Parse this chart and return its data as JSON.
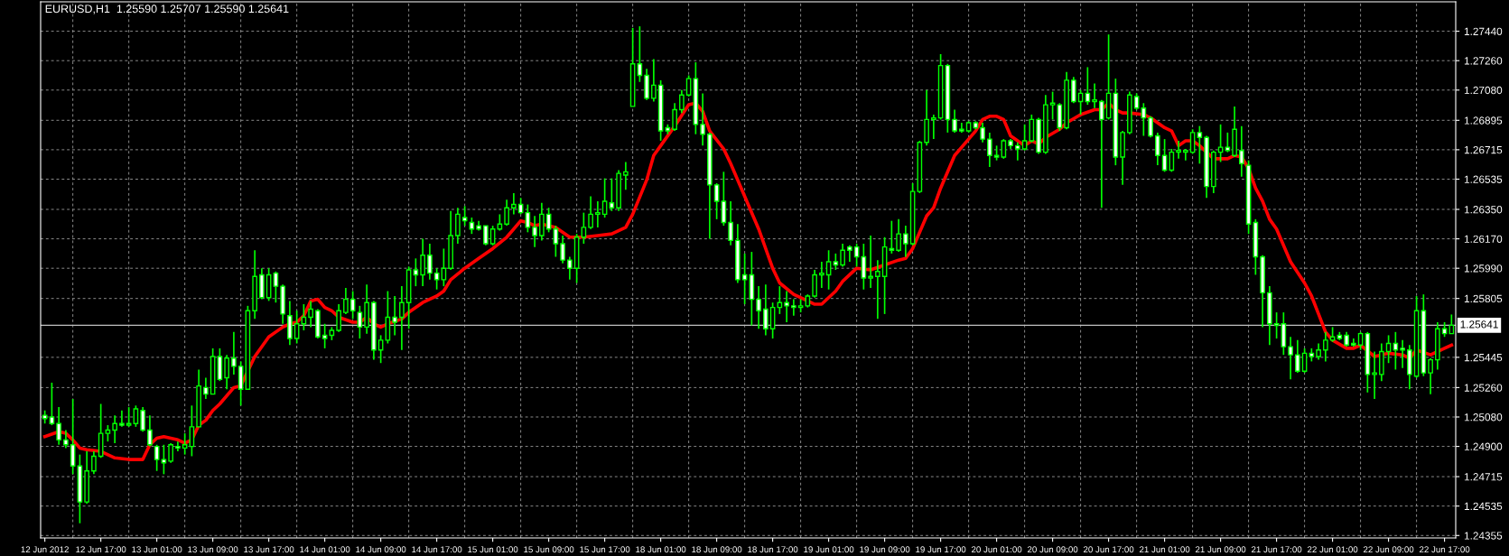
{
  "chart_data": {
    "type": "candlestick",
    "title": "EURUSD,H1  1.25590 1.25707 1.25590 1.25641",
    "categories": [
      "12 Jun 2012",
      null,
      null,
      null,
      null,
      null,
      null,
      null,
      "12 Jun 17:00",
      null,
      null,
      null,
      null,
      null,
      null,
      null,
      "13 Jun 01:00",
      null,
      null,
      null,
      null,
      null,
      null,
      null,
      "13 Jun 09:00",
      null,
      null,
      null,
      null,
      null,
      null,
      null,
      "13 Jun 17:00",
      null,
      null,
      null,
      null,
      null,
      null,
      null,
      "14 Jun 01:00",
      null,
      null,
      null,
      null,
      null,
      null,
      null,
      "14 Jun 09:00",
      null,
      null,
      null,
      null,
      null,
      null,
      null,
      "14 Jun 17:00",
      null,
      null,
      null,
      null,
      null,
      null,
      null,
      "15 Jun 01:00",
      null,
      null,
      null,
      null,
      null,
      null,
      null,
      "15 Jun 09:00",
      null,
      null,
      null,
      null,
      null,
      null,
      null,
      "15 Jun 17:00",
      null,
      null,
      null,
      null,
      null,
      null,
      null,
      "18 Jun 01:00",
      null,
      null,
      null,
      null,
      null,
      null,
      null,
      "18 Jun 09:00",
      null,
      null,
      null,
      null,
      null,
      null,
      null,
      "18 Jun 17:00",
      null,
      null,
      null,
      null,
      null,
      null,
      null,
      "19 Jun 01:00",
      null,
      null,
      null,
      null,
      null,
      null,
      null,
      "19 Jun 09:00",
      null,
      null,
      null,
      null,
      null,
      null,
      null,
      "19 Jun 17:00",
      null,
      null,
      null,
      null,
      null,
      null,
      null,
      "20 Jun 01:00",
      null,
      null,
      null,
      null,
      null,
      null,
      null,
      "20 Jun 09:00",
      null,
      null,
      null,
      null,
      null,
      null,
      null,
      "20 Jun 17:00",
      null,
      null,
      null,
      null,
      null,
      null,
      null,
      "21 Jun 01:00",
      null,
      null,
      null,
      null,
      null,
      null,
      null,
      "21 Jun 09:00",
      null,
      null,
      null,
      null,
      null,
      null,
      null,
      "21 Jun 17:00",
      null,
      null,
      null,
      null,
      null,
      null,
      null,
      "22 Jun 01:00",
      null,
      null,
      null,
      null,
      null,
      null,
      null,
      "22 Jun 09:00",
      null,
      null,
      null,
      null,
      null,
      null,
      null,
      "22 Jun 17:00",
      null
    ],
    "color": "#00ff00",
    "ohlc": [
      [
        1.2509,
        1.2512,
        1.2504,
        1.2507
      ],
      [
        1.2508,
        1.2529,
        1.2503,
        1.2504
      ],
      [
        1.2504,
        1.2514,
        1.2491,
        1.2494
      ],
      [
        1.2494,
        1.25,
        1.2489,
        1.2491
      ],
      [
        1.2491,
        1.2519,
        1.2473,
        1.2478
      ],
      [
        1.2478,
        1.2485,
        1.2443,
        1.2456
      ],
      [
        1.2456,
        1.2487,
        1.2455,
        1.2475
      ],
      [
        1.2475,
        1.2487,
        1.2473,
        1.2484
      ],
      [
        1.2484,
        1.2516,
        1.2483,
        1.2498
      ],
      [
        1.2498,
        1.2503,
        1.2493,
        1.25
      ],
      [
        1.25,
        1.2509,
        1.2492,
        1.2504
      ],
      [
        1.2504,
        1.2512,
        1.2502,
        1.2503
      ],
      [
        1.2503,
        1.2514,
        1.2502,
        1.2504
      ],
      [
        1.2504,
        1.2515,
        1.2502,
        1.2513
      ],
      [
        1.2512,
        1.2514,
        1.2499,
        1.25
      ],
      [
        1.25,
        1.2509,
        1.249,
        1.2491
      ],
      [
        1.249,
        1.2491,
        1.2475,
        1.2482
      ],
      [
        1.2482,
        1.2491,
        1.2473,
        1.248
      ],
      [
        1.2481,
        1.2492,
        1.248,
        1.2491
      ],
      [
        1.249,
        1.2493,
        1.2487,
        1.2489
      ],
      [
        1.2489,
        1.2498,
        1.2485,
        1.2491
      ],
      [
        1.249,
        1.2515,
        1.2484,
        1.2502
      ],
      [
        1.2502,
        1.2537,
        1.2502,
        1.2527
      ],
      [
        1.2526,
        1.2532,
        1.2519,
        1.2522
      ],
      [
        1.2522,
        1.255,
        1.2522,
        1.2545
      ],
      [
        1.2545,
        1.255,
        1.253,
        1.2531
      ],
      [
        1.2532,
        1.2546,
        1.2525,
        1.2544
      ],
      [
        1.2544,
        1.256,
        1.2534,
        1.2539
      ],
      [
        1.2539,
        1.2542,
        1.2515,
        1.2525
      ],
      [
        1.2525,
        1.2576,
        1.2525,
        1.2573
      ],
      [
        1.2573,
        1.261,
        1.2568,
        1.2594
      ],
      [
        1.2595,
        1.2599,
        1.258,
        1.2581
      ],
      [
        1.2581,
        1.2599,
        1.2579,
        1.2595
      ],
      [
        1.2596,
        1.2597,
        1.2578,
        1.2588
      ],
      [
        1.2588,
        1.2589,
        1.2565,
        1.2571
      ],
      [
        1.257,
        1.2579,
        1.2552,
        1.2556
      ],
      [
        1.2556,
        1.2573,
        1.2553,
        1.2565
      ],
      [
        1.2565,
        1.2577,
        1.2561,
        1.2569
      ],
      [
        1.2569,
        1.2579,
        1.2563,
        1.2574
      ],
      [
        1.2573,
        1.2574,
        1.2556,
        1.2557
      ],
      [
        1.2558,
        1.2565,
        1.255,
        1.2556
      ],
      [
        1.2558,
        1.2563,
        1.2555,
        1.2561
      ],
      [
        1.2561,
        1.2577,
        1.256,
        1.2573
      ],
      [
        1.2572,
        1.2587,
        1.2571,
        1.258
      ],
      [
        1.258,
        1.2585,
        1.2568,
        1.2573
      ],
      [
        1.2572,
        1.2576,
        1.2556,
        1.2563
      ],
      [
        1.2563,
        1.2589,
        1.2559,
        1.2578
      ],
      [
        1.2578,
        1.2579,
        1.2543,
        1.2549
      ],
      [
        1.2549,
        1.2558,
        1.2541,
        1.2555
      ],
      [
        1.2555,
        1.2585,
        1.2553,
        1.2569
      ],
      [
        1.2569,
        1.2582,
        1.2558,
        1.2566
      ],
      [
        1.2569,
        1.2588,
        1.2549,
        1.2578
      ],
      [
        1.2578,
        1.26,
        1.2562,
        1.2598
      ],
      [
        1.2598,
        1.2605,
        1.2588,
        1.2595
      ],
      [
        1.2595,
        1.2617,
        1.2588,
        1.2607
      ],
      [
        1.2607,
        1.2614,
        1.2592,
        1.2596
      ],
      [
        1.2596,
        1.2599,
        1.2586,
        1.2592
      ],
      [
        1.2592,
        1.2611,
        1.2588,
        1.2599
      ],
      [
        1.2599,
        1.2634,
        1.2598,
        1.2619
      ],
      [
        1.2619,
        1.2636,
        1.2614,
        1.2632
      ],
      [
        1.263,
        1.2637,
        1.2625,
        1.2628
      ],
      [
        1.2627,
        1.263,
        1.262,
        1.2623
      ],
      [
        1.2625,
        1.2628,
        1.2622,
        1.2623
      ],
      [
        1.2625,
        1.2625,
        1.2613,
        1.2614
      ],
      [
        1.2614,
        1.2625,
        1.2613,
        1.2623
      ],
      [
        1.2623,
        1.2632,
        1.2622,
        1.2626
      ],
      [
        1.2626,
        1.2641,
        1.2625,
        1.2636
      ],
      [
        1.2636,
        1.2645,
        1.2632,
        1.2638
      ],
      [
        1.2638,
        1.2642,
        1.2632,
        1.2633
      ],
      [
        1.2633,
        1.2638,
        1.2621,
        1.2624
      ],
      [
        1.2624,
        1.2631,
        1.2612,
        1.2619
      ],
      [
        1.2619,
        1.2639,
        1.2616,
        1.2632
      ],
      [
        1.2632,
        1.2636,
        1.2621,
        1.2623
      ],
      [
        1.2623,
        1.2625,
        1.2606,
        1.2614
      ],
      [
        1.2614,
        1.2619,
        1.2602,
        1.2604
      ],
      [
        1.2604,
        1.2606,
        1.2592,
        1.2599
      ],
      [
        1.2599,
        1.262,
        1.259,
        1.2618
      ],
      [
        1.2618,
        1.2633,
        1.2614,
        1.2624
      ],
      [
        1.2624,
        1.2643,
        1.2623,
        1.2632
      ],
      [
        1.2632,
        1.264,
        1.2624,
        1.2633
      ],
      [
        1.2632,
        1.2654,
        1.263,
        1.264
      ],
      [
        1.2639,
        1.2654,
        1.2634,
        1.2636
      ],
      [
        1.2636,
        1.2659,
        1.2634,
        1.2657
      ],
      [
        1.2656,
        1.2664,
        1.2647,
        1.2658
      ],
      [
        1.2698,
        1.2746,
        1.2698,
        1.2724
      ],
      [
        1.2724,
        1.2747,
        1.2713,
        1.2717
      ],
      [
        1.2717,
        1.2721,
        1.2702,
        1.2703
      ],
      [
        1.2703,
        1.2727,
        1.2701,
        1.2711
      ],
      [
        1.2711,
        1.2714,
        1.2677,
        1.2683
      ],
      [
        1.2685,
        1.2687,
        1.2681,
        1.2683
      ],
      [
        1.2684,
        1.27,
        1.2683,
        1.2696
      ],
      [
        1.2696,
        1.2708,
        1.2694,
        1.2705
      ],
      [
        1.2705,
        1.2717,
        1.2704,
        1.2715
      ],
      [
        1.2715,
        1.2725,
        1.2681,
        1.2687
      ],
      [
        1.2687,
        1.2706,
        1.2674,
        1.2681
      ],
      [
        1.2681,
        1.2682,
        1.2617,
        1.265
      ],
      [
        1.265,
        1.2651,
        1.2629,
        1.264
      ],
      [
        1.264,
        1.2658,
        1.2625,
        1.2627
      ],
      [
        1.2627,
        1.264,
        1.2613,
        1.2616
      ],
      [
        1.2616,
        1.2626,
        1.259,
        1.2592
      ],
      [
        1.2595,
        1.2608,
        1.2577,
        1.2592
      ],
      [
        1.2595,
        1.2609,
        1.2564,
        1.258
      ],
      [
        1.258,
        1.2588,
        1.2562,
        1.2573
      ],
      [
        1.2574,
        1.2589,
        1.2558,
        1.2562
      ],
      [
        1.2562,
        1.2578,
        1.2556,
        1.2575
      ],
      [
        1.2575,
        1.2588,
        1.2571,
        1.2578
      ],
      [
        1.2578,
        1.2585,
        1.2566,
        1.2576
      ],
      [
        1.2576,
        1.258,
        1.257,
        1.2575
      ],
      [
        1.2575,
        1.258,
        1.2572,
        1.2576
      ],
      [
        1.2576,
        1.2583,
        1.2575,
        1.2582
      ],
      [
        1.2582,
        1.2598,
        1.2581,
        1.2595
      ],
      [
        1.2595,
        1.2603,
        1.2587,
        1.2596
      ],
      [
        1.2595,
        1.261,
        1.2586,
        1.2603
      ],
      [
        1.2603,
        1.2608,
        1.2598,
        1.2601
      ],
      [
        1.2601,
        1.2614,
        1.26,
        1.261
      ],
      [
        1.2612,
        1.2613,
        1.2603,
        1.261
      ],
      [
        1.2612,
        1.2614,
        1.26,
        1.2606
      ],
      [
        1.2606,
        1.2614,
        1.2586,
        1.2593
      ],
      [
        1.2593,
        1.2619,
        1.2587,
        1.2594
      ],
      [
        1.2594,
        1.2604,
        1.2568,
        1.2597
      ],
      [
        1.2594,
        1.2618,
        1.2571,
        1.2612
      ],
      [
        1.2611,
        1.2628,
        1.2608,
        1.261
      ],
      [
        1.261,
        1.2629,
        1.2609,
        1.262
      ],
      [
        1.262,
        1.2625,
        1.2606,
        1.2614
      ],
      [
        1.2614,
        1.2651,
        1.2613,
        1.2646
      ],
      [
        1.2646,
        1.2677,
        1.2645,
        1.2676
      ],
      [
        1.2676,
        1.2708,
        1.2674,
        1.269
      ],
      [
        1.269,
        1.2693,
        1.2678,
        1.2691
      ],
      [
        1.2691,
        1.273,
        1.269,
        1.2723
      ],
      [
        1.2723,
        1.2724,
        1.2682,
        1.269
      ],
      [
        1.269,
        1.2696,
        1.2682,
        1.2683
      ],
      [
        1.2684,
        1.2688,
        1.2682,
        1.2683
      ],
      [
        1.2683,
        1.2689,
        1.2682,
        1.2688
      ],
      [
        1.2688,
        1.2689,
        1.2684,
        1.2685
      ],
      [
        1.2685,
        1.2688,
        1.2676,
        1.2678
      ],
      [
        1.2678,
        1.2682,
        1.2661,
        1.2668
      ],
      [
        1.2668,
        1.2674,
        1.2665,
        1.2667
      ],
      [
        1.2667,
        1.2678,
        1.2666,
        1.2677
      ],
      [
        1.2677,
        1.2678,
        1.2672,
        1.2674
      ],
      [
        1.2674,
        1.2676,
        1.2665,
        1.2672
      ],
      [
        1.2672,
        1.2687,
        1.2671,
        1.2677
      ],
      [
        1.2677,
        1.2693,
        1.2676,
        1.269
      ],
      [
        1.269,
        1.2691,
        1.2669,
        1.267
      ],
      [
        1.267,
        1.2705,
        1.2669,
        1.2699
      ],
      [
        1.2699,
        1.2707,
        1.269,
        1.27
      ],
      [
        1.2699,
        1.27,
        1.2683,
        1.2685
      ],
      [
        1.2685,
        1.2719,
        1.2684,
        1.2714
      ],
      [
        1.2714,
        1.2716,
        1.27,
        1.2701
      ],
      [
        1.2701,
        1.2708,
        1.2693,
        1.2706
      ],
      [
        1.2706,
        1.2722,
        1.2699,
        1.2701
      ],
      [
        1.2701,
        1.2712,
        1.2697,
        1.2702
      ],
      [
        1.2701,
        1.2702,
        1.2636,
        1.269
      ],
      [
        1.2691,
        1.2742,
        1.269,
        1.2706
      ],
      [
        1.2706,
        1.2715,
        1.2662,
        1.2667
      ],
      [
        1.2667,
        1.2683,
        1.265,
        1.2682
      ],
      [
        1.2682,
        1.2707,
        1.2681,
        1.2705
      ],
      [
        1.2704,
        1.2706,
        1.2696,
        1.2697
      ],
      [
        1.2697,
        1.27,
        1.268,
        1.2691
      ],
      [
        1.2691,
        1.2692,
        1.2679,
        1.268
      ],
      [
        1.268,
        1.2682,
        1.2662,
        1.2668
      ],
      [
        1.2668,
        1.2678,
        1.2658,
        1.2659
      ],
      [
        1.2659,
        1.2672,
        1.2658,
        1.267
      ],
      [
        1.267,
        1.2677,
        1.2666,
        1.2671
      ],
      [
        1.267,
        1.2672,
        1.2665,
        1.2671
      ],
      [
        1.267,
        1.2684,
        1.2669,
        1.2682
      ],
      [
        1.2682,
        1.2686,
        1.2663,
        1.2679
      ],
      [
        1.2679,
        1.268,
        1.2642,
        1.2649
      ],
      [
        1.2649,
        1.2671,
        1.2645,
        1.267
      ],
      [
        1.267,
        1.2687,
        1.2664,
        1.2673
      ],
      [
        1.2673,
        1.2682,
        1.267,
        1.2671
      ],
      [
        1.2668,
        1.2698,
        1.2667,
        1.2684
      ],
      [
        1.2671,
        1.2686,
        1.2655,
        1.2663
      ],
      [
        1.2662,
        1.2665,
        1.262,
        1.2626
      ],
      [
        1.2627,
        1.2629,
        1.2595,
        1.2606
      ],
      [
        1.2606,
        1.2607,
        1.2563,
        1.2584
      ],
      [
        1.2584,
        1.2588,
        1.2552,
        1.2565
      ],
      [
        1.2565,
        1.2572,
        1.2556,
        1.2564
      ],
      [
        1.2565,
        1.2572,
        1.2546,
        1.2551
      ],
      [
        1.2551,
        1.2557,
        1.2531,
        1.2546
      ],
      [
        1.2546,
        1.2555,
        1.2535,
        1.2536
      ],
      [
        1.2536,
        1.255,
        1.2535,
        1.2547
      ],
      [
        1.2547,
        1.255,
        1.2542,
        1.2545
      ],
      [
        1.2545,
        1.2553,
        1.2543,
        1.2549
      ],
      [
        1.2549,
        1.256,
        1.2542,
        1.2555
      ],
      [
        1.2555,
        1.2563,
        1.2554,
        1.2557
      ],
      [
        1.2558,
        1.256,
        1.2555,
        1.2556
      ],
      [
        1.2558,
        1.256,
        1.2551,
        1.2552
      ],
      [
        1.2553,
        1.2556,
        1.2551,
        1.2552
      ],
      [
        1.2552,
        1.256,
        1.2549,
        1.2559
      ],
      [
        1.2559,
        1.256,
        1.2523,
        1.2534
      ],
      [
        1.2534,
        1.2548,
        1.2519,
        1.2535
      ],
      [
        1.2534,
        1.2553,
        1.253,
        1.2548
      ],
      [
        1.2548,
        1.2558,
        1.2541,
        1.2553
      ],
      [
        1.2553,
        1.256,
        1.2537,
        1.2549
      ],
      [
        1.255,
        1.2555,
        1.2538,
        1.2549
      ],
      [
        1.2549,
        1.2552,
        1.2525,
        1.2534
      ],
      [
        1.2533,
        1.2582,
        1.2532,
        1.2573
      ],
      [
        1.2573,
        1.2583,
        1.2533,
        1.2535
      ],
      [
        1.2535,
        1.2544,
        1.2522,
        1.2543
      ],
      [
        1.2543,
        1.2566,
        1.2537,
        1.2562
      ],
      [
        1.2562,
        1.2566,
        1.2557,
        1.2559
      ],
      [
        1.2559,
        1.25707,
        1.2559,
        1.25641
      ]
    ],
    "series": [
      {
        "type": "line",
        "color": "#ff0000",
        "values": [
          1.2496,
          null,
          1.2499,
          1.2498,
          1.2494,
          1.2489,
          1.2488,
          null,
          1.2487,
          null,
          1.2483,
          null,
          1.2482,
          null,
          1.2482,
          1.2491,
          1.2495,
          1.2496,
          null,
          1.2494,
          1.2492,
          1.2494,
          1.2503,
          1.2506,
          1.2512,
          1.2516,
          null,
          1.2526,
          1.2527,
          null,
          1.2545,
          null,
          1.2557,
          null,
          1.2563,
          1.2565,
          1.2566,
          1.257,
          1.2579,
          1.258,
          1.2575,
          1.2573,
          1.2569,
          null,
          1.2566,
          1.2566,
          1.2569,
          1.2565,
          1.2563,
          1.2565,
          null,
          1.2568,
          1.2572,
          null,
          1.2578,
          null,
          1.2582,
          1.2585,
          1.2592,
          null,
          1.2599,
          null,
          1.2605,
          null,
          1.2611,
          null,
          1.2618,
          null,
          1.2628,
          1.2627,
          1.2625,
          1.2626,
          null,
          1.2624,
          null,
          1.2618,
          null,
          1.2618,
          null,
          1.2619,
          null,
          1.262,
          null,
          1.2624,
          1.2632,
          null,
          1.2653,
          1.2668,
          1.2674,
          null,
          1.2686,
          null,
          1.2699,
          1.27,
          1.2695,
          1.2683,
          null,
          1.2672,
          1.2663,
          null,
          1.2643,
          null,
          1.2623,
          null,
          1.2599,
          1.259,
          null,
          1.2583,
          null,
          1.2579,
          1.2577,
          1.2577,
          null,
          1.2585,
          1.2591,
          null,
          1.2599,
          null,
          1.2598,
          null,
          1.2601,
          null,
          1.2604,
          1.2605,
          1.2611,
          null,
          1.2631,
          1.2636,
          1.2648,
          null,
          1.2668,
          null,
          1.2678,
          1.2683,
          1.269,
          1.2692,
          1.2692,
          1.269,
          1.268,
          1.2677,
          1.2674,
          1.2677,
          1.2675,
          1.2679,
          null,
          1.2684,
          1.2688,
          null,
          1.2693,
          null,
          1.2696,
          1.2696,
          1.27,
          1.2696,
          1.2694,
          1.2694,
          null,
          1.2693,
          1.2691,
          null,
          1.2685,
          1.2683,
          1.2674,
          1.2677,
          1.2677,
          1.2674,
          1.267,
          1.2666,
          null,
          1.2666,
          1.2668,
          1.2667,
          1.266,
          1.2648,
          1.264,
          1.2629,
          1.2623,
          null,
          1.2603,
          null,
          1.259,
          1.2582,
          1.2571,
          1.256,
          1.2555,
          null,
          1.255,
          1.255,
          1.2552,
          null,
          1.2545,
          null,
          1.2547,
          null,
          1.2546,
          1.2544,
          1.2549,
          null,
          1.2546,
          null,
          1.255,
          1.2552
        ]
      }
    ],
    "ylim": [
      1.2434,
      1.2762
    ],
    "yticks": [
      {
        "value": 1.24355,
        "label": "1.24355"
      },
      {
        "value": 1.24535,
        "label": "1.24535"
      },
      {
        "value": 1.24715,
        "label": "1.24715"
      },
      {
        "value": 1.249,
        "label": "1.24900"
      },
      {
        "value": 1.2508,
        "label": "1.25080"
      },
      {
        "value": 1.2526,
        "label": "1.25260"
      },
      {
        "value": 1.25445,
        "label": "1.25445"
      },
      {
        "value": 1.25805,
        "label": "1.25805"
      },
      {
        "value": 1.2599,
        "label": "1.25990"
      },
      {
        "value": 1.2617,
        "label": "1.26170"
      },
      {
        "value": 1.2635,
        "label": "1.26350"
      },
      {
        "value": 1.26535,
        "label": "1.26535"
      },
      {
        "value": 1.26715,
        "label": "1.26715"
      },
      {
        "value": 1.26895,
        "label": "1.26895"
      },
      {
        "value": 1.2708,
        "label": "1.27080"
      },
      {
        "value": 1.2726,
        "label": "1.27260"
      },
      {
        "value": 1.2744,
        "label": "1.27440"
      }
    ],
    "ref_lines": [
      {
        "axis": "y",
        "value": 1.25641,
        "label": "1.25641",
        "color": "#c0c0c0"
      }
    ],
    "grid": true
  }
}
